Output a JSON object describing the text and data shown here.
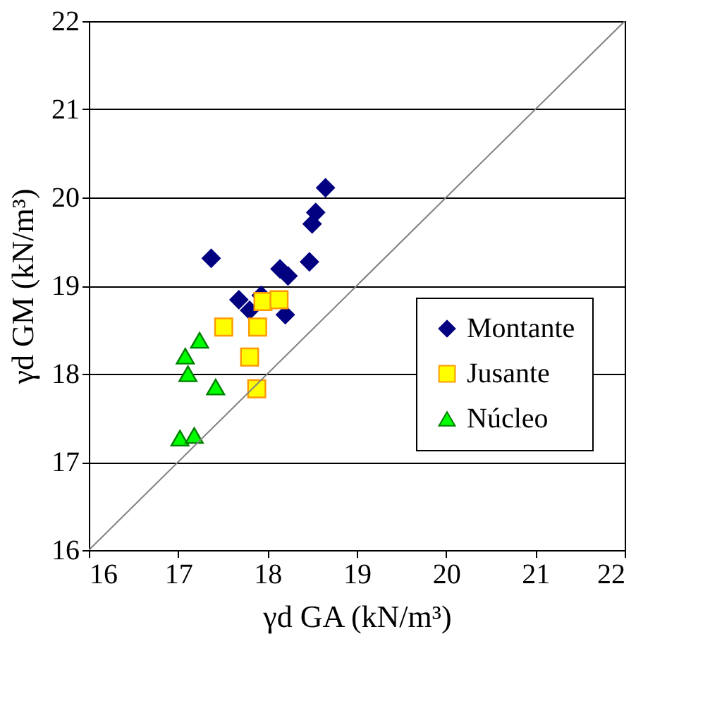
{
  "chart_data": {
    "type": "scatter",
    "xlabel": "γd GA (kN/m³)",
    "ylabel": "γd GM (kN/m³)",
    "xlim": [
      16,
      22
    ],
    "ylim": [
      16,
      22
    ],
    "xticks": [
      16,
      17,
      18,
      19,
      20,
      21,
      22
    ],
    "yticks": [
      16,
      17,
      18,
      19,
      20,
      21,
      22
    ],
    "grid": "y",
    "legend": "bottom right",
    "series": [
      {
        "name": "Montante",
        "color": "#000080",
        "marker": "diamond",
        "x": [
          17.37,
          17.68,
          17.8,
          17.93,
          18.14,
          18.23,
          18.2,
          18.47,
          18.5,
          18.54,
          18.65
        ],
        "values": [
          19.31,
          18.84,
          18.72,
          18.89,
          19.19,
          19.11,
          18.67,
          19.27,
          19.7,
          19.83,
          20.11
        ]
      },
      {
        "name": "Jusante",
        "color": "#ffff00",
        "marker": "square",
        "x": [
          17.51,
          17.95,
          18.13,
          17.89,
          17.8,
          17.88
        ],
        "values": [
          18.53,
          18.82,
          18.84,
          18.53,
          18.19,
          17.83
        ]
      },
      {
        "name": "Núcleo",
        "color": "#00ff00",
        "marker": "triangle",
        "x": [
          17.02,
          17.18,
          17.08,
          17.11,
          17.24,
          17.42
        ],
        "values": [
          17.27,
          17.3,
          18.2,
          18.0,
          18.38,
          17.85
        ]
      },
      {
        "type": "line",
        "color": "#808080",
        "line_style": "solid",
        "x": [
          16,
          22
        ],
        "values": [
          16,
          22
        ]
      }
    ]
  }
}
